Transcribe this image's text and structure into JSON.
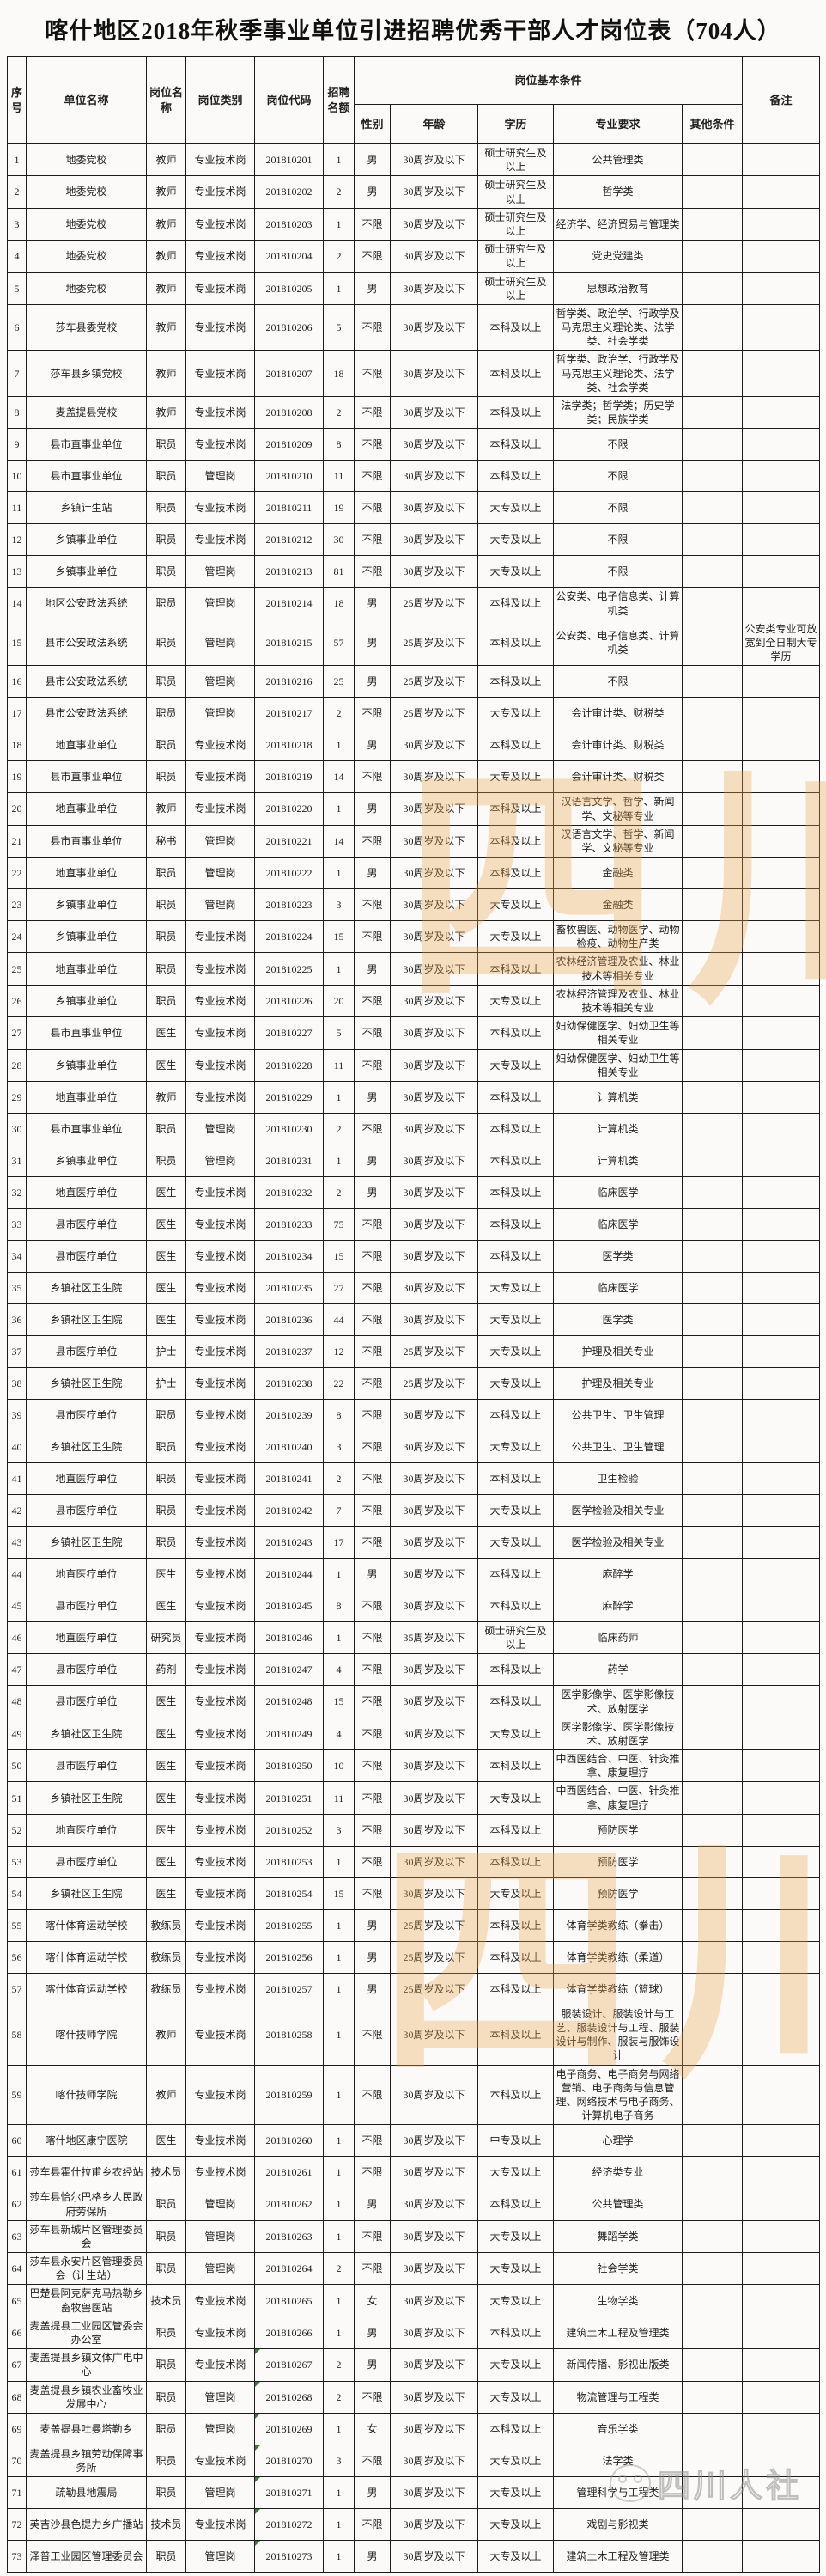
{
  "title": "喀什地区2018年秋季事业单位引进招聘优秀干部人才岗位表（704人）",
  "watermarks": {
    "center_text": "四川人社",
    "center_color": "#e9a64a",
    "logo_text": "四川人社",
    "logo_icon": "wechat-panda-logo"
  },
  "flagged_code_rows": [
    67,
    68,
    69,
    70,
    71,
    72,
    73
  ],
  "table": {
    "headers": {
      "xuhao": "序号",
      "danwei": "单位名称",
      "gangwei_mingcheng": "岗位名称",
      "gangwei_leibie": "岗位类别",
      "gangwei_daima": "岗位代码",
      "zhaopin_minge": "招聘名额",
      "jiben_tiaojian": "岗位基本条件",
      "xingbie": "性别",
      "nianling": "年龄",
      "xueli": "学历",
      "zhuanye_yaoqiu": "专业要求",
      "qita_tiaojian": "其他条件",
      "beizhu": "备注"
    },
    "rows": [
      [
        "1",
        "地委党校",
        "教师",
        "专业技术岗",
        "201810201",
        "1",
        "男",
        "30周岁及以下",
        "硕士研究生及以上",
        "公共管理类",
        "",
        ""
      ],
      [
        "2",
        "地委党校",
        "教师",
        "专业技术岗",
        "201810202",
        "2",
        "男",
        "30周岁及以下",
        "硕士研究生及以上",
        "哲学类",
        "",
        ""
      ],
      [
        "3",
        "地委党校",
        "教师",
        "专业技术岗",
        "201810203",
        "1",
        "不限",
        "30周岁及以下",
        "硕士研究生及以上",
        "经济学、经济贸易与管理类",
        "",
        ""
      ],
      [
        "4",
        "地委党校",
        "教师",
        "专业技术岗",
        "201810204",
        "2",
        "不限",
        "30周岁及以下",
        "硕士研究生及以上",
        "党史党建类",
        "",
        ""
      ],
      [
        "5",
        "地委党校",
        "教师",
        "专业技术岗",
        "201810205",
        "1",
        "男",
        "30周岁及以下",
        "硕士研究生及以上",
        "思想政治教育",
        "",
        ""
      ],
      [
        "6",
        "莎车县委党校",
        "教师",
        "专业技术岗",
        "201810206",
        "5",
        "不限",
        "30周岁及以下",
        "本科及以上",
        "哲学类、政治学、行政学及马克思主义理论类、法学类、社会学类",
        "",
        ""
      ],
      [
        "7",
        "莎车县乡镇党校",
        "教师",
        "专业技术岗",
        "201810207",
        "18",
        "不限",
        "30周岁及以下",
        "本科及以上",
        "哲学类、政治学、行政学及马克思主义理论类、法学类、社会学类",
        "",
        ""
      ],
      [
        "8",
        "麦盖提县党校",
        "教师",
        "专业技术岗",
        "201810208",
        "2",
        "不限",
        "30周岁及以下",
        "本科及以上",
        "法学类；哲学类；历史学类；民族学类",
        "",
        ""
      ],
      [
        "9",
        "县市直事业单位",
        "职员",
        "专业技术岗",
        "201810209",
        "8",
        "不限",
        "30周岁及以下",
        "本科及以上",
        "不限",
        "",
        ""
      ],
      [
        "10",
        "县市直事业单位",
        "职员",
        "管理岗",
        "201810210",
        "11",
        "不限",
        "30周岁及以下",
        "本科及以上",
        "不限",
        "",
        ""
      ],
      [
        "11",
        "乡镇计生站",
        "职员",
        "专业技术岗",
        "201810211",
        "19",
        "不限",
        "30周岁及以下",
        "大专及以上",
        "不限",
        "",
        ""
      ],
      [
        "12",
        "乡镇事业单位",
        "职员",
        "专业技术岗",
        "201810212",
        "30",
        "不限",
        "30周岁及以下",
        "大专及以上",
        "不限",
        "",
        ""
      ],
      [
        "13",
        "乡镇事业单位",
        "职员",
        "管理岗",
        "201810213",
        "81",
        "不限",
        "30周岁及以下",
        "大专及以上",
        "不限",
        "",
        ""
      ],
      [
        "14",
        "地区公安政法系统",
        "职员",
        "管理岗",
        "201810214",
        "18",
        "男",
        "25周岁及以下",
        "本科及以上",
        "公安类、电子信息类、计算机类",
        "",
        ""
      ],
      [
        "15",
        "县市公安政法系统",
        "职员",
        "管理岗",
        "201810215",
        "57",
        "男",
        "25周岁及以下",
        "本科及以上",
        "公安类、电子信息类、计算机类",
        "",
        "公安类专业可放宽到全日制大专学历"
      ],
      [
        "16",
        "县市公安政法系统",
        "职员",
        "管理岗",
        "201810216",
        "25",
        "男",
        "25周岁及以下",
        "本科及以上",
        "不限",
        "",
        ""
      ],
      [
        "17",
        "县市公安政法系统",
        "职员",
        "管理岗",
        "201810217",
        "2",
        "不限",
        "25周岁及以下",
        "大专及以上",
        "会计审计类、财税类",
        "",
        ""
      ],
      [
        "18",
        "地直事业单位",
        "职员",
        "专业技术岗",
        "201810218",
        "1",
        "男",
        "30周岁及以下",
        "本科及以上",
        "会计审计类、财税类",
        "",
        ""
      ],
      [
        "19",
        "县市直事业单位",
        "职员",
        "专业技术岗",
        "201810219",
        "14",
        "不限",
        "30周岁及以下",
        "大专及以上",
        "会计审计类、财税类",
        "",
        ""
      ],
      [
        "20",
        "地直事业单位",
        "教师",
        "专业技术岗",
        "201810220",
        "1",
        "男",
        "30周岁及以下",
        "本科及以上",
        "汉语言文学、哲学、新闻学、文秘等专业",
        "",
        ""
      ],
      [
        "21",
        "县市直事业单位",
        "秘书",
        "管理岗",
        "201810221",
        "14",
        "不限",
        "30周岁及以下",
        "本科及以上",
        "汉语言文学、哲学、新闻学、文秘等专业",
        "",
        ""
      ],
      [
        "22",
        "地直事业单位",
        "职员",
        "管理岗",
        "201810222",
        "1",
        "男",
        "30周岁及以下",
        "本科及以上",
        "金融类",
        "",
        ""
      ],
      [
        "23",
        "乡镇事业单位",
        "职员",
        "管理岗",
        "201810223",
        "3",
        "不限",
        "30周岁及以下",
        "大专及以上",
        "金融类",
        "",
        ""
      ],
      [
        "24",
        "乡镇事业单位",
        "职员",
        "专业技术岗",
        "201810224",
        "15",
        "不限",
        "30周岁及以下",
        "大专及以上",
        "畜牧兽医、动物医学、动物检疫、动物生产类",
        "",
        ""
      ],
      [
        "25",
        "地直事业单位",
        "职员",
        "专业技术岗",
        "201810225",
        "1",
        "男",
        "30周岁及以下",
        "本科及以上",
        "农林经济管理及农业、林业技术等相关专业",
        "",
        ""
      ],
      [
        "26",
        "乡镇事业单位",
        "职员",
        "专业技术岗",
        "201810226",
        "20",
        "不限",
        "30周岁及以下",
        "大专及以上",
        "农林经济管理及农业、林业技术等相关专业",
        "",
        ""
      ],
      [
        "27",
        "县市直事业单位",
        "医生",
        "专业技术岗",
        "201810227",
        "5",
        "不限",
        "30周岁及以下",
        "本科及以上",
        "妇幼保健医学、妇幼卫生等相关专业",
        "",
        ""
      ],
      [
        "28",
        "乡镇事业单位",
        "医生",
        "专业技术岗",
        "201810228",
        "11",
        "不限",
        "30周岁及以下",
        "大专及以上",
        "妇幼保健医学、妇幼卫生等相关专业",
        "",
        ""
      ],
      [
        "29",
        "地直事业单位",
        "教师",
        "专业技术岗",
        "201810229",
        "1",
        "男",
        "30周岁及以下",
        "本科及以上",
        "计算机类",
        "",
        ""
      ],
      [
        "30",
        "县市直事业单位",
        "职员",
        "管理岗",
        "201810230",
        "2",
        "不限",
        "30周岁及以下",
        "本科及以上",
        "计算机类",
        "",
        ""
      ],
      [
        "31",
        "乡镇事业单位",
        "职员",
        "管理岗",
        "201810231",
        "1",
        "男",
        "30周岁及以下",
        "本科及以上",
        "计算机类",
        "",
        ""
      ],
      [
        "32",
        "地直医疗单位",
        "医生",
        "专业技术岗",
        "201810232",
        "2",
        "男",
        "30周岁及以下",
        "本科及以上",
        "临床医学",
        "",
        ""
      ],
      [
        "33",
        "县市医疗单位",
        "医生",
        "专业技术岗",
        "201810233",
        "75",
        "不限",
        "30周岁及以下",
        "本科及以上",
        "临床医学",
        "",
        ""
      ],
      [
        "34",
        "县市医疗单位",
        "医生",
        "专业技术岗",
        "201810234",
        "15",
        "不限",
        "30周岁及以下",
        "本科及以上",
        "医学类",
        "",
        ""
      ],
      [
        "35",
        "乡镇社区卫生院",
        "医生",
        "专业技术岗",
        "201810235",
        "27",
        "不限",
        "30周岁及以下",
        "大专及以上",
        "临床医学",
        "",
        ""
      ],
      [
        "36",
        "乡镇社区卫生院",
        "医生",
        "专业技术岗",
        "201810236",
        "44",
        "不限",
        "30周岁及以下",
        "大专及以上",
        "医学类",
        "",
        ""
      ],
      [
        "37",
        "县市医疗单位",
        "护士",
        "专业技术岗",
        "201810237",
        "12",
        "不限",
        "25周岁及以下",
        "大专及以上",
        "护理及相关专业",
        "",
        ""
      ],
      [
        "38",
        "乡镇社区卫生院",
        "护士",
        "专业技术岗",
        "201810238",
        "22",
        "不限",
        "25周岁及以下",
        "大专及以上",
        "护理及相关专业",
        "",
        ""
      ],
      [
        "39",
        "县市医疗单位",
        "职员",
        "专业技术岗",
        "201810239",
        "8",
        "不限",
        "30周岁及以下",
        "本科及以上",
        "公共卫生、卫生管理",
        "",
        ""
      ],
      [
        "40",
        "乡镇社区卫生院",
        "职员",
        "专业技术岗",
        "201810240",
        "3",
        "不限",
        "30周岁及以下",
        "大专及以上",
        "公共卫生、卫生管理",
        "",
        ""
      ],
      [
        "41",
        "地直医疗单位",
        "职员",
        "专业技术岗",
        "201810241",
        "2",
        "不限",
        "30周岁及以下",
        "本科及以上",
        "卫生检验",
        "",
        ""
      ],
      [
        "42",
        "县市医疗单位",
        "职员",
        "专业技术岗",
        "201810242",
        "7",
        "不限",
        "30周岁及以下",
        "大专及以上",
        "医学检验及相关专业",
        "",
        ""
      ],
      [
        "43",
        "乡镇社区卫生院",
        "职员",
        "专业技术岗",
        "201810243",
        "17",
        "不限",
        "30周岁及以下",
        "大专及以上",
        "医学检验及相关专业",
        "",
        ""
      ],
      [
        "44",
        "地直医疗单位",
        "医生",
        "专业技术岗",
        "201810244",
        "1",
        "男",
        "30周岁及以下",
        "本科及以上",
        "麻醉学",
        "",
        ""
      ],
      [
        "45",
        "县市医疗单位",
        "医生",
        "专业技术岗",
        "201810245",
        "8",
        "不限",
        "30周岁及以下",
        "本科及以上",
        "麻醉学",
        "",
        ""
      ],
      [
        "46",
        "地直医疗单位",
        "研究员",
        "专业技术岗",
        "201810246",
        "1",
        "不限",
        "35周岁及以下",
        "硕士研究生及以上",
        "临床药师",
        "",
        ""
      ],
      [
        "47",
        "县市医疗单位",
        "药剂",
        "专业技术岗",
        "201810247",
        "4",
        "不限",
        "30周岁及以下",
        "本科及以上",
        "药学",
        "",
        ""
      ],
      [
        "48",
        "县市医疗单位",
        "医生",
        "专业技术岗",
        "201810248",
        "15",
        "不限",
        "30周岁及以下",
        "本科及以上",
        "医学影像学、医学影像技术、放射医学",
        "",
        ""
      ],
      [
        "49",
        "乡镇社区卫生院",
        "医生",
        "专业技术岗",
        "201810249",
        "4",
        "不限",
        "30周岁及以下",
        "大专及以上",
        "医学影像学、医学影像技术、放射医学",
        "",
        ""
      ],
      [
        "50",
        "县市医疗单位",
        "医生",
        "专业技术岗",
        "201810250",
        "10",
        "不限",
        "30周岁及以下",
        "本科及以上",
        "中西医结合、中医、针灸推拿、康复理疗",
        "",
        ""
      ],
      [
        "51",
        "乡镇社区卫生院",
        "医生",
        "专业技术岗",
        "201810251",
        "11",
        "不限",
        "30周岁及以下",
        "大专及以上",
        "中西医结合、中医、针灸推拿、康复理疗",
        "",
        ""
      ],
      [
        "52",
        "地直医疗单位",
        "医生",
        "专业技术岗",
        "201810252",
        "3",
        "不限",
        "30周岁及以下",
        "本科及以上",
        "预防医学",
        "",
        ""
      ],
      [
        "53",
        "县市医疗单位",
        "医生",
        "专业技术岗",
        "201810253",
        "1",
        "不限",
        "30周岁及以下",
        "本科及以上",
        "预防医学",
        "",
        ""
      ],
      [
        "54",
        "乡镇社区卫生院",
        "医生",
        "专业技术岗",
        "201810254",
        "15",
        "不限",
        "30周岁及以下",
        "大专及以上",
        "预防医学",
        "",
        ""
      ],
      [
        "55",
        "喀什体育运动学校",
        "教练员",
        "专业技术岗",
        "201810255",
        "1",
        "男",
        "25周岁及以下",
        "本科及以上",
        "体育学类教练（拳击）",
        "",
        ""
      ],
      [
        "56",
        "喀什体育运动学校",
        "教练员",
        "专业技术岗",
        "201810256",
        "1",
        "男",
        "25周岁及以下",
        "本科及以上",
        "体育学类教练（柔道）",
        "",
        ""
      ],
      [
        "57",
        "喀什体育运动学校",
        "教练员",
        "专业技术岗",
        "201810257",
        "1",
        "男",
        "25周岁及以下",
        "本科及以上",
        "体育学类教练（篮球）",
        "",
        ""
      ],
      [
        "58",
        "喀什技师学院",
        "教师",
        "专业技术岗",
        "201810258",
        "1",
        "不限",
        "30周岁及以下",
        "本科及以上",
        "服装设计、服装设计与工艺、服装设计与工程、服装设计与制作、服装与服饰设计",
        "",
        ""
      ],
      [
        "59",
        "喀什技师学院",
        "教师",
        "专业技术岗",
        "201810259",
        "1",
        "不限",
        "30周岁及以下",
        "本科及以上",
        "电子商务、电子商务与网络营销、电子商务与信息管理、网络技术与电子商务、计算机电子商务",
        "",
        ""
      ],
      [
        "60",
        "喀什地区康宁医院",
        "医生",
        "专业技术岗",
        "201810260",
        "1",
        "不限",
        "30周岁及以下",
        "中专及以上",
        "心理学",
        "",
        ""
      ],
      [
        "61",
        "莎车县霍什拉甫乡农经站",
        "技术员",
        "专业技术岗",
        "201810261",
        "1",
        "不限",
        "30周岁及以下",
        "大专及以上",
        "经济类专业",
        "",
        ""
      ],
      [
        "62",
        "莎车县恰尔巴格乡人民政府劳保所",
        "职员",
        "管理岗",
        "201810262",
        "1",
        "男",
        "30周岁及以下",
        "本科及以上",
        "公共管理类",
        "",
        ""
      ],
      [
        "63",
        "莎车县新城片区管理委员会",
        "职员",
        "管理岗",
        "201810263",
        "1",
        "不限",
        "30周岁及以下",
        "大专及以上",
        "舞蹈学类",
        "",
        ""
      ],
      [
        "64",
        "莎车县永安片区管理委员会（计生站）",
        "职员",
        "管理岗",
        "201810264",
        "2",
        "不限",
        "30周岁及以下",
        "大专及以上",
        "社会学类",
        "",
        ""
      ],
      [
        "65",
        "巴楚县阿克萨克马热勒乡畜牧兽医站",
        "技术员",
        "专业技术岗",
        "201810265",
        "1",
        "女",
        "30周岁及以下",
        "大专及以上",
        "生物学类",
        "",
        ""
      ],
      [
        "66",
        "麦盖提县工业园区管委会办公室",
        "职员",
        "专业技术岗",
        "201810266",
        "1",
        "男",
        "30周岁及以下",
        "本科及以上",
        "建筑土木工程及管理类",
        "",
        ""
      ],
      [
        "67",
        "麦盖提县乡镇文体广电中心",
        "职员",
        "专业技术岗",
        "201810267",
        "2",
        "男",
        "30周岁及以下",
        "大专及以上",
        "新闻传播、影视出版类",
        "",
        ""
      ],
      [
        "68",
        "麦盖提县乡镇农业畜牧业发展中心",
        "职员",
        "管理岗",
        "201810268",
        "2",
        "不限",
        "30周岁及以下",
        "大专及以上",
        "物流管理与工程类",
        "",
        ""
      ],
      [
        "69",
        "麦盖提县吐曼塔勒乡",
        "职员",
        "管理岗",
        "201810269",
        "1",
        "女",
        "30周岁及以下",
        "本科及以上",
        "音乐学类",
        "",
        ""
      ],
      [
        "70",
        "麦盖提县乡镇劳动保障事务所",
        "职员",
        "专业技术岗",
        "201810270",
        "3",
        "不限",
        "30周岁及以下",
        "大专及以上",
        "法学类",
        "",
        ""
      ],
      [
        "71",
        "疏勒县地震局",
        "职员",
        "管理岗",
        "201810271",
        "1",
        "男",
        "30周岁及以下",
        "大专及以上",
        "管理科学与工程类",
        "",
        ""
      ],
      [
        "72",
        "英吉沙县色提力乡广播站",
        "技术员",
        "专业技术岗",
        "201810272",
        "1",
        "不限",
        "30周岁及以下",
        "大专及以上",
        "戏剧与影视类",
        "",
        ""
      ],
      [
        "73",
        "泽普工业园区管理委员会",
        "职员",
        "管理岗",
        "201810273",
        "1",
        "男",
        "30周岁及以下",
        "大专及以上",
        "建筑土木工程及管理类",
        "",
        ""
      ]
    ]
  }
}
